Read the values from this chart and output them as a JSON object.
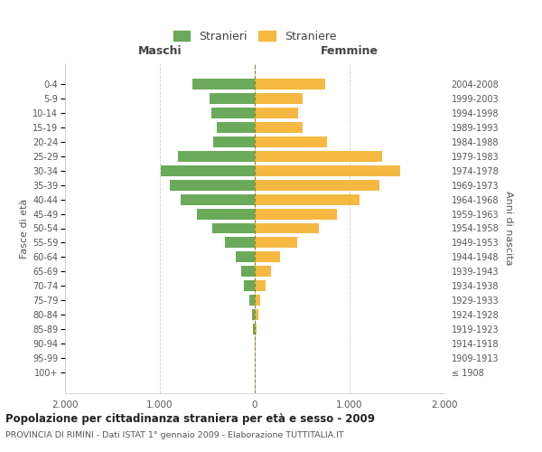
{
  "age_groups": [
    "100+",
    "95-99",
    "90-94",
    "85-89",
    "80-84",
    "75-79",
    "70-74",
    "65-69",
    "60-64",
    "55-59",
    "50-54",
    "45-49",
    "40-44",
    "35-39",
    "30-34",
    "25-29",
    "20-24",
    "15-19",
    "10-14",
    "5-9",
    "0-4"
  ],
  "birth_years": [
    "≤ 1908",
    "1909-1913",
    "1914-1918",
    "1919-1923",
    "1924-1928",
    "1929-1933",
    "1934-1938",
    "1939-1943",
    "1944-1948",
    "1949-1953",
    "1954-1958",
    "1959-1963",
    "1964-1968",
    "1969-1973",
    "1974-1978",
    "1979-1983",
    "1984-1988",
    "1989-1993",
    "1994-1998",
    "1999-2003",
    "2004-2008"
  ],
  "maschi": [
    0,
    0,
    0,
    20,
    30,
    60,
    110,
    145,
    200,
    310,
    450,
    610,
    780,
    900,
    990,
    810,
    440,
    400,
    460,
    480,
    660
  ],
  "femmine": [
    0,
    0,
    10,
    20,
    35,
    55,
    110,
    175,
    270,
    450,
    680,
    870,
    1100,
    1310,
    1530,
    1340,
    760,
    500,
    460,
    500,
    740
  ],
  "color_maschi": "#6aaa5a",
  "color_femmine": "#f5b942",
  "title": "Popolazione per cittadinanza straniera per età e sesso - 2009",
  "subtitle": "PROVINCIA DI RIMINI - Dati ISTAT 1° gennaio 2009 - Elaborazione TUTTITALIA.IT",
  "xlabel_left": "Maschi",
  "xlabel_right": "Femmine",
  "ylabel_left": "Fasce di età",
  "ylabel_right": "Anni di nascita",
  "legend_maschi": "Stranieri",
  "legend_femmine": "Straniere",
  "xlim": 2000,
  "xtick_labels": [
    "2.000",
    "1.000",
    "0",
    "1.000",
    "2.000"
  ],
  "background_color": "#ffffff",
  "grid_color": "#cccccc",
  "vline_color": "#888833",
  "spine_color": "#cccccc"
}
